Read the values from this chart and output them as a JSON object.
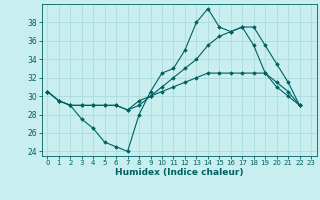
{
  "title": "",
  "xlabel": "Humidex (Indice chaleur)",
  "ylabel": "",
  "background_color": "#c8eef0",
  "grid_color": "#a8d8d8",
  "line_color": "#006060",
  "xlim": [
    -0.5,
    23.5
  ],
  "ylim": [
    23.5,
    40.0
  ],
  "yticks": [
    24,
    26,
    28,
    30,
    32,
    34,
    36,
    38
  ],
  "xticks": [
    0,
    1,
    2,
    3,
    4,
    5,
    6,
    7,
    8,
    9,
    10,
    11,
    12,
    13,
    14,
    15,
    16,
    17,
    18,
    19,
    20,
    21,
    22,
    23
  ],
  "series": [
    [
      30.5,
      29.5,
      29.0,
      27.5,
      26.5,
      25.0,
      24.5,
      24.0,
      28.0,
      30.5,
      32.5,
      33.0,
      35.0,
      38.0,
      39.5,
      37.5,
      37.0,
      37.5,
      35.5,
      32.5,
      31.0,
      30.0,
      29.0
    ],
    [
      30.5,
      29.5,
      29.0,
      29.0,
      29.0,
      29.0,
      29.0,
      28.5,
      29.0,
      30.0,
      30.5,
      31.0,
      31.5,
      32.0,
      32.5,
      32.5,
      32.5,
      32.5,
      32.5,
      32.5,
      31.5,
      30.5,
      29.0
    ],
    [
      30.5,
      29.5,
      29.0,
      29.0,
      29.0,
      29.0,
      29.0,
      28.5,
      29.5,
      30.0,
      31.0,
      32.0,
      33.0,
      34.0,
      35.5,
      36.5,
      37.0,
      37.5,
      37.5,
      35.5,
      33.5,
      31.5,
      29.0
    ]
  ]
}
